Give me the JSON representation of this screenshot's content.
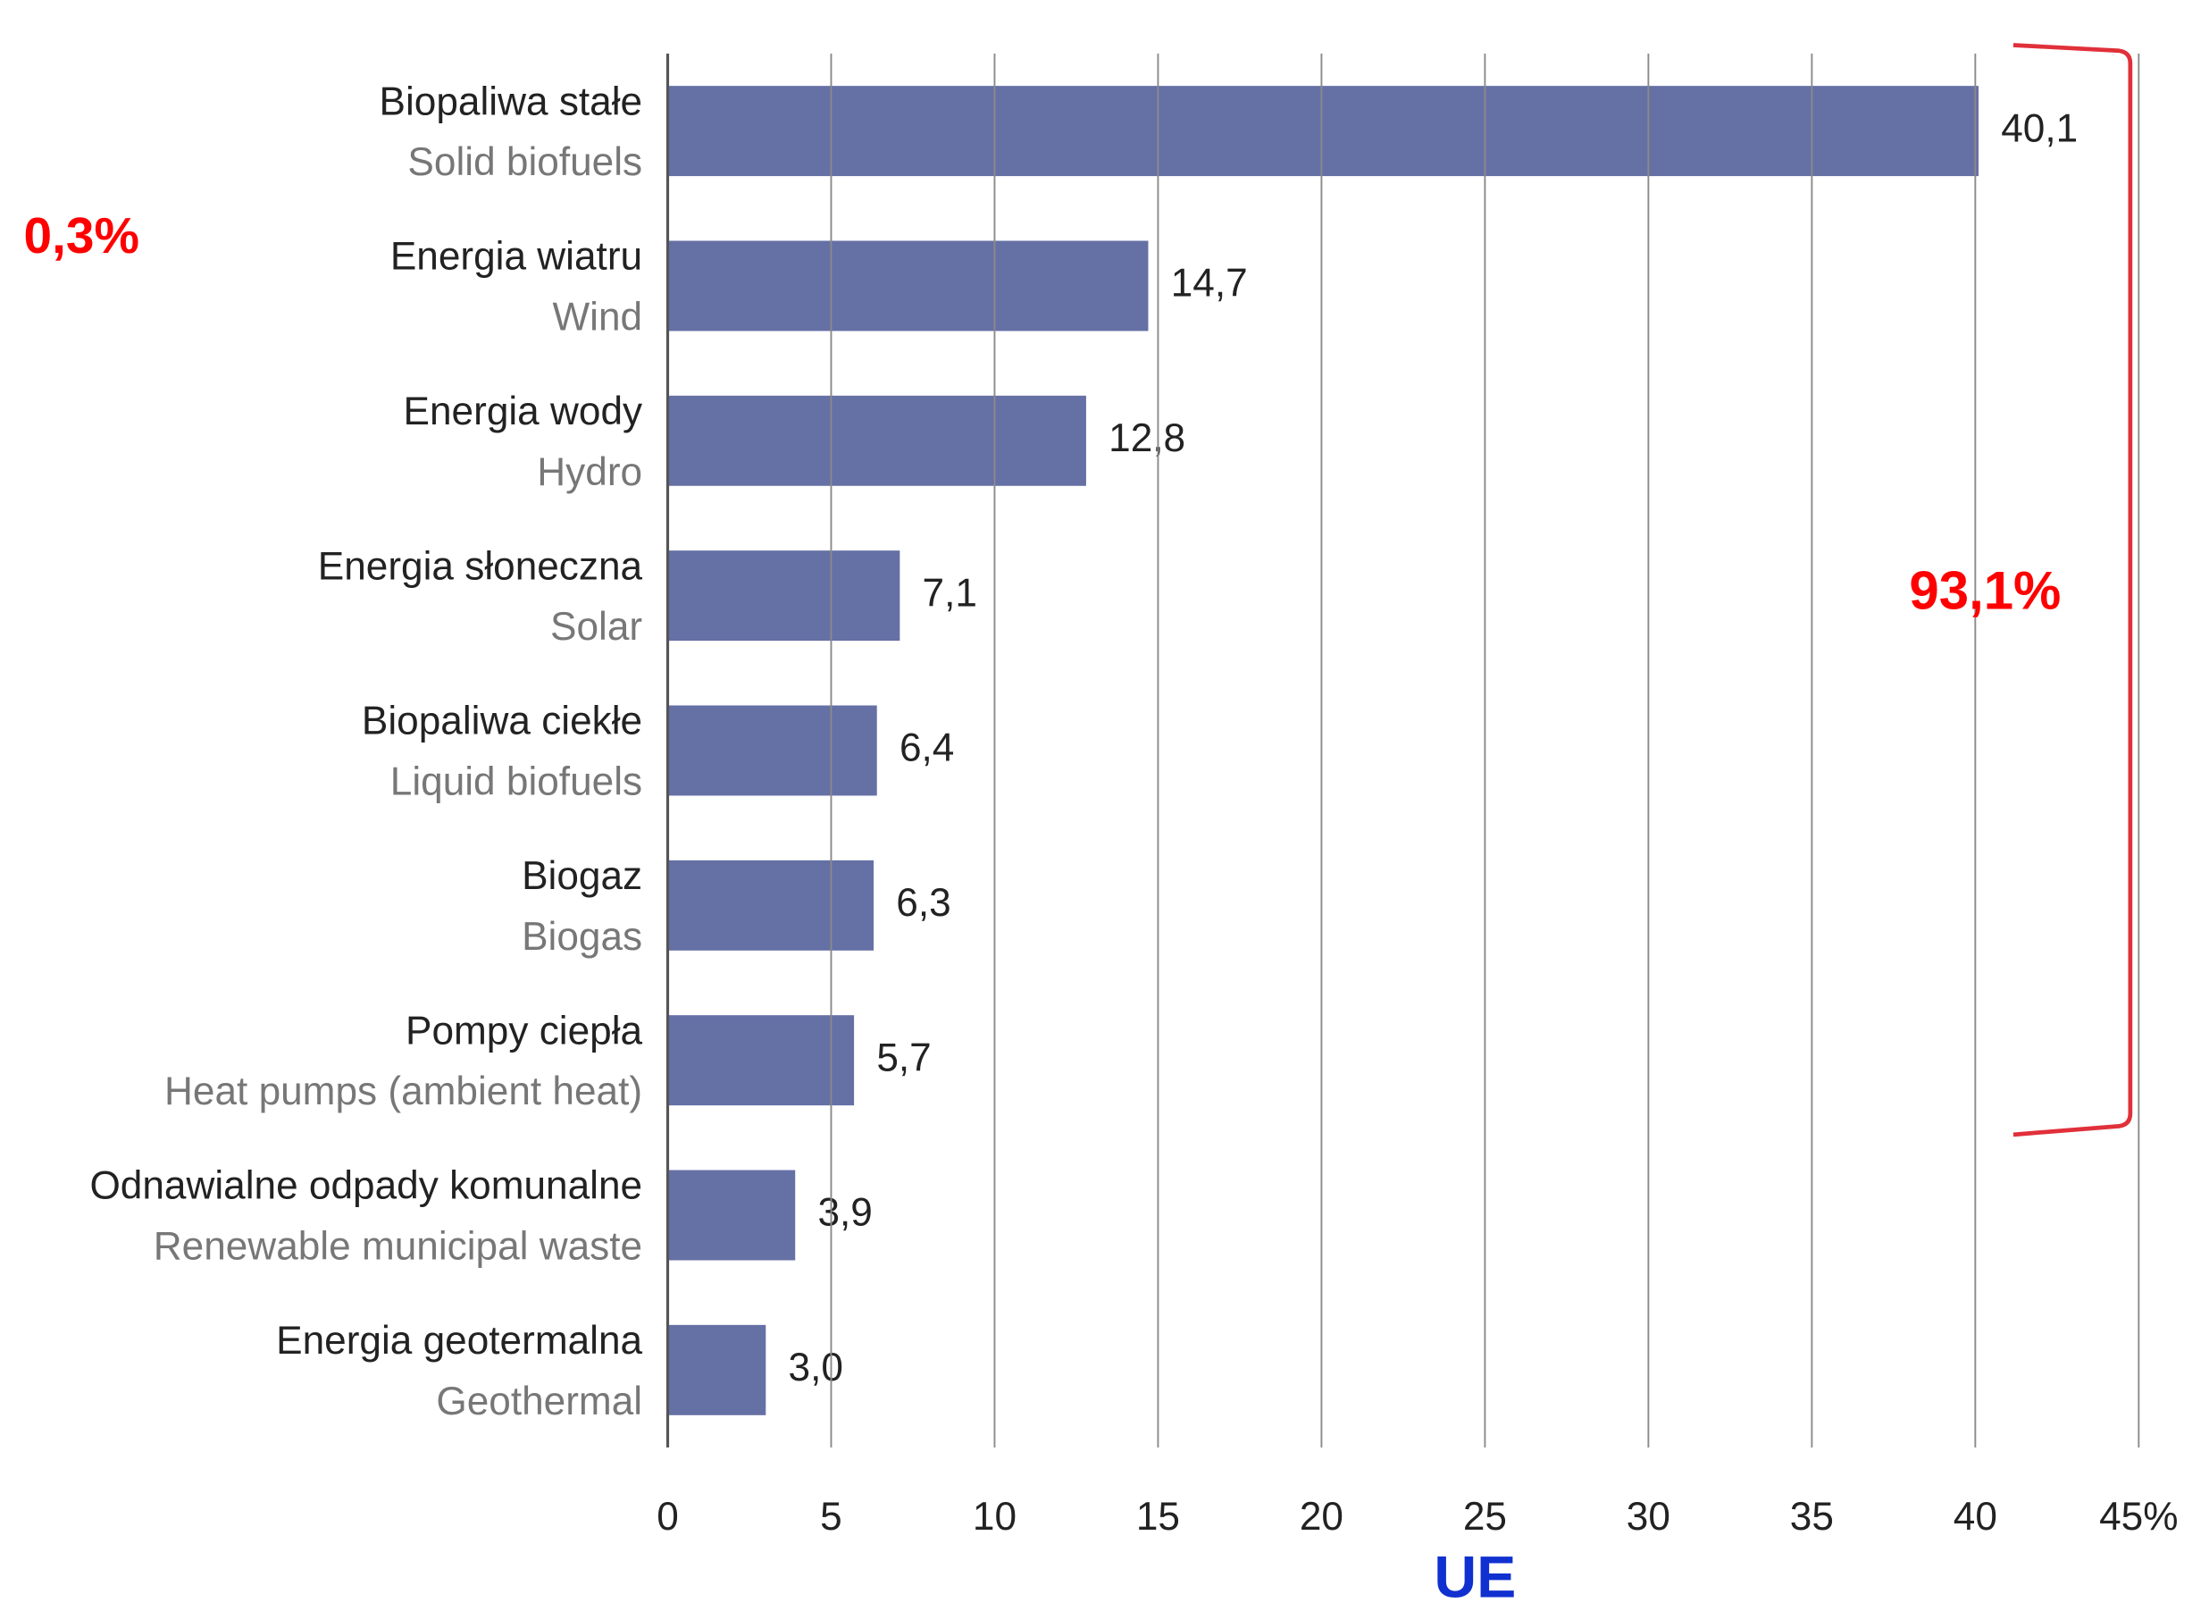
{
  "chart_data": {
    "type": "barh",
    "categories": [
      {
        "label": "Biopaliwa stałe",
        "sublabel": "Solid biofuels"
      },
      {
        "label": "Energia wiatru",
        "sublabel": "Wind"
      },
      {
        "label": "Energia wody",
        "sublabel": "Hydro"
      },
      {
        "label": "Energia słoneczna",
        "sublabel": "Solar"
      },
      {
        "label": "Biopaliwa ciekłe",
        "sublabel": "Liquid biofuels"
      },
      {
        "label": "Biogaz",
        "sublabel": "Biogas"
      },
      {
        "label": "Pompy ciepła",
        "sublabel": "Heat pumps (ambient heat)"
      },
      {
        "label": "Odnawialne odpady komunalne",
        "sublabel": "Renewable municipal waste"
      },
      {
        "label": "Energia geotermalna",
        "sublabel": "Geothermal"
      }
    ],
    "values": [
      40.1,
      14.7,
      12.8,
      7.1,
      6.4,
      6.3,
      5.7,
      3.9,
      3.0
    ],
    "value_labels": [
      "40,1",
      "14,7",
      "12,8",
      "7,1",
      "6,4",
      "6,3",
      "5,7",
      "3,9",
      "3,0"
    ],
    "color": "#6570a5",
    "xlim": [
      0,
      45
    ],
    "xticks": [
      0,
      5,
      10,
      15,
      20,
      25,
      30,
      35,
      40,
      {
        "value": 45,
        "label": "45%"
      }
    ],
    "grid": true,
    "annotations": [
      "0,3%",
      "93,1%"
    ],
    "xlabel": "UE"
  }
}
